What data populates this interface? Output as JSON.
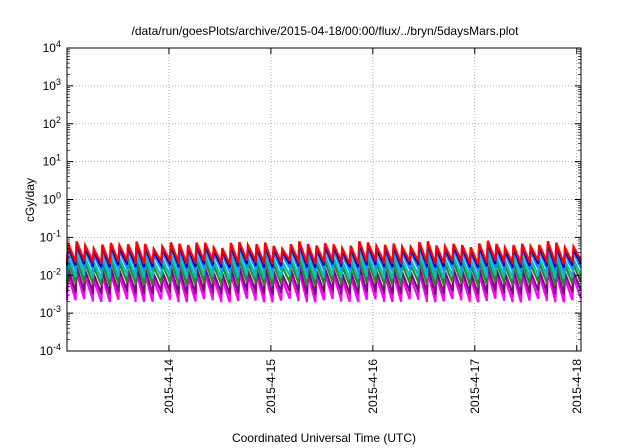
{
  "chart_data": {
    "type": "line",
    "title": "/data/run/goesPlots/archive/2015-04-18/00:00/flux/../bryn/5daysMars.plot",
    "xlabel": "Coordinated Universal Time (UTC)",
    "ylabel": "cGy/day",
    "x_range": [
      "2015-04-13 00:00",
      "2015-04-18 01:00"
    ],
    "x_ticks": [
      "2015-4-14",
      "2015-4-15",
      "2015-4-16",
      "2015-4-17",
      "2015-4-18"
    ],
    "y_scale": "log",
    "ylim": [
      0.0001,
      10000
    ],
    "y_ticks": [
      {
        "base": "10",
        "exp": "4"
      },
      {
        "base": "10",
        "exp": "3"
      },
      {
        "base": "10",
        "exp": "2"
      },
      {
        "base": "10",
        "exp": "1"
      },
      {
        "base": "10",
        "exp": "0"
      },
      {
        "base": "10",
        "exp": "-1"
      },
      {
        "base": "10",
        "exp": "-2"
      },
      {
        "base": "10",
        "exp": "-3"
      },
      {
        "base": "10",
        "exp": "-4"
      }
    ],
    "grid": true,
    "pattern": {
      "description_values": "sawtooth: sharp rise to peak, gradual decay; ~60 cycles over plotted span",
      "cycles": 60
    },
    "series": [
      {
        "color": "#ff0000",
        "peak": 0.065,
        "trough": 0.022
      },
      {
        "color": "#0000cc",
        "peak": 0.055,
        "trough": 0.018
      },
      {
        "color": "#1e90ff",
        "peak": 0.045,
        "trough": 0.014
      },
      {
        "color": "#00c0c0",
        "peak": 0.03,
        "trough": 0.009
      },
      {
        "color": "#228b22",
        "peak": 0.022,
        "trough": 0.006
      },
      {
        "color": "#800080",
        "peak": 0.014,
        "trough": 0.0035
      },
      {
        "color": "#ff00ff",
        "peak": 0.01,
        "trough": 0.0022
      }
    ]
  }
}
